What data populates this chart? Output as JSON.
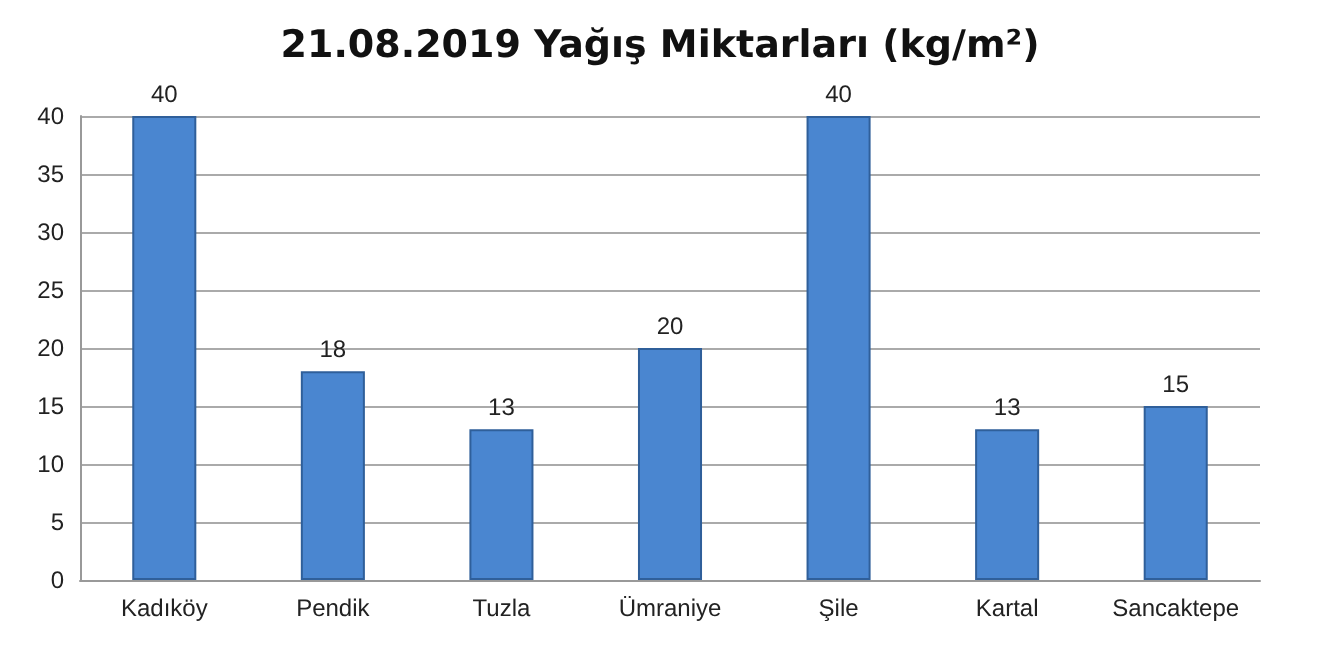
{
  "chart_data": {
    "type": "bar",
    "title": "21.08.2019 Yağış Miktarları (kg/m²)",
    "categories": [
      "Kadıköy",
      "Pendik",
      "Tuzla",
      "Ümraniye",
      "Şile",
      "Kartal",
      "Sancaktepe"
    ],
    "values": [
      40,
      18,
      13,
      20,
      40,
      13,
      15
    ],
    "color": "#4a86d0",
    "ylim": [
      0,
      40
    ],
    "yticks": [
      0,
      5,
      10,
      15,
      20,
      25,
      30,
      35,
      40
    ],
    "grid": "y",
    "data_labels": true
  }
}
